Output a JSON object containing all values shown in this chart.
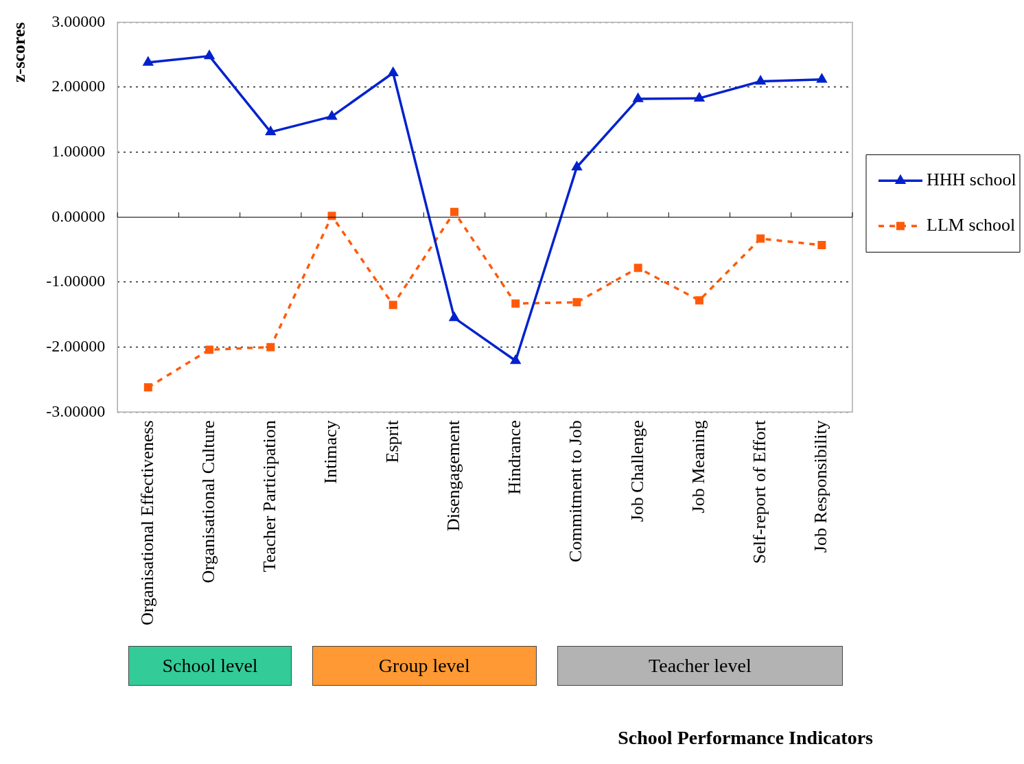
{
  "chart_data": {
    "type": "line",
    "ylabel": "z-scores",
    "categories": [
      "Organisational Effectiveness",
      "Organisational Culture",
      "Teacher Participation",
      "Intimacy",
      "Esprit",
      "Disengagement",
      "Hindrance",
      "Commitment to Job",
      "Job Challenge",
      "Job Meaning",
      "Self-report of Effort",
      "Job Responsibility"
    ],
    "series": [
      {
        "name": "HHH school",
        "color": "#0022cc",
        "marker": "triangle",
        "line_style": "solid",
        "values": [
          2.38,
          2.48,
          1.31,
          1.55,
          2.22,
          -1.55,
          -2.21,
          0.77,
          1.82,
          1.83,
          2.09,
          2.12
        ]
      },
      {
        "name": "LLM school",
        "color": "#ff5a0a",
        "marker": "square",
        "line_style": "dashed",
        "values": [
          -2.62,
          -2.04,
          -2.0,
          0.02,
          -1.35,
          0.08,
          -1.33,
          -1.31,
          -0.78,
          -1.28,
          -0.33,
          -0.43
        ]
      }
    ],
    "ylim": [
      -3,
      3
    ],
    "yticks": [
      {
        "value": -3,
        "label": "-3.00000"
      },
      {
        "value": -2,
        "label": "-2.00000"
      },
      {
        "value": -1,
        "label": "-1.00000"
      },
      {
        "value": 0,
        "label": "0.00000"
      },
      {
        "value": 1,
        "label": "1.00000"
      },
      {
        "value": 2,
        "label": "2.00000"
      },
      {
        "value": 3,
        "label": "3.00000"
      }
    ],
    "grid": "y",
    "legend": "right",
    "annotations": [
      "School level",
      "Group level",
      "Teacher level",
      "School Performance Indicators"
    ]
  }
}
